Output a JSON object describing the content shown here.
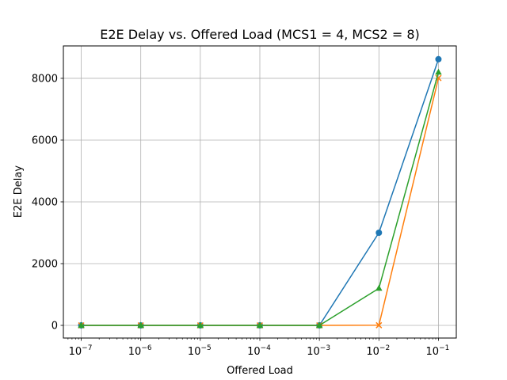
{
  "chart_data": {
    "type": "line",
    "title": "E2E Delay vs. Offered Load (MCS1 = 4, MCS2 = 8)",
    "xlabel": "Offered Load",
    "ylabel": "E2E Delay",
    "xscale": "log",
    "x": [
      1e-07,
      1e-06,
      1e-05,
      0.0001,
      0.001,
      0.01,
      0.1
    ],
    "x_tick_labels": [
      {
        "base": "10",
        "exp": "−7"
      },
      {
        "base": "10",
        "exp": "−6"
      },
      {
        "base": "10",
        "exp": "−5"
      },
      {
        "base": "10",
        "exp": "−4"
      },
      {
        "base": "10",
        "exp": "−3"
      },
      {
        "base": "10",
        "exp": "−2"
      },
      {
        "base": "10",
        "exp": "−1"
      }
    ],
    "y_ticks": [
      0,
      2000,
      4000,
      6000,
      8000
    ],
    "ylim": [
      -410,
      9050
    ],
    "grid": true,
    "series": [
      {
        "color": "#1f77b4",
        "marker": "circle",
        "values": [
          0,
          0,
          0,
          0,
          0,
          3000,
          8620
        ]
      },
      {
        "color": "#ff7f0e",
        "marker": "x",
        "values": [
          0,
          0,
          0,
          0,
          0,
          5,
          8010
        ]
      },
      {
        "color": "#2ca02c",
        "marker": "triangle",
        "values": [
          0,
          0,
          0,
          0,
          0,
          1200,
          8200
        ]
      }
    ]
  }
}
